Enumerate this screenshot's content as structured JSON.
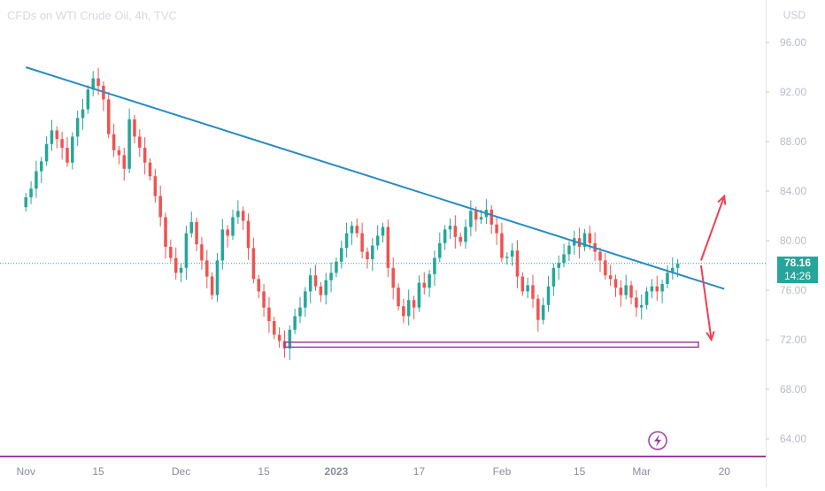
{
  "header": {
    "title": "CFDs on WTI Crude Oil, 4h, TVC",
    "currency": "USD"
  },
  "price_badge": {
    "last_price": "78.16",
    "countdown": "14:26"
  },
  "colors": {
    "up": "#26a69a",
    "down": "#ef5350",
    "trendline": "#2a8bc4",
    "support": "#9c3f9c",
    "arrows": "#ef4050",
    "last_price_line": "#26a69a"
  },
  "chart_data": {
    "type": "candlestick",
    "title": "CFDs on WTI Crude Oil, 4h, TVC",
    "ylabel": "USD",
    "ylim": [
      62,
      98
    ],
    "y_ticks": [
      "96.00",
      "92.00",
      "88.00",
      "84.00",
      "80.00",
      "76.00",
      "72.00",
      "68.00",
      "64.00"
    ],
    "x_ticks": [
      "Nov",
      "15",
      "Dec",
      "15",
      "2023",
      "17",
      "Feb",
      "15",
      "Mar",
      "20"
    ],
    "x_ticks_bold": [
      "2023"
    ],
    "x_index": [
      0,
      14,
      30,
      46,
      60,
      76,
      92,
      107,
      119,
      135
    ],
    "x_range": [
      -5,
      143
    ],
    "closes": [
      83.5,
      84.2,
      85.6,
      86.4,
      87.8,
      88.9,
      88.2,
      87.5,
      86.3,
      88.4,
      89.9,
      90.6,
      92.2,
      93.1,
      92.5,
      91.4,
      88.6,
      87.3,
      86.9,
      85.8,
      89.8,
      88.4,
      87.5,
      86.3,
      85.2,
      83.6,
      81.9,
      79.5,
      78.6,
      77.4,
      77.8,
      80.6,
      81.5,
      79.7,
      78.4,
      77.1,
      75.6,
      78.4,
      80.9,
      80.4,
      81.9,
      82.4,
      81.6,
      79.4,
      76.9,
      75.9,
      74.6,
      73.5,
      72.4,
      71.9,
      71.3,
      72.8,
      73.9,
      74.6,
      75.9,
      77.2,
      76.3,
      75.6,
      76.8,
      77.4,
      78.3,
      79.4,
      80.6,
      81.2,
      80.6,
      79.1,
      78.5,
      79.6,
      80.4,
      81.1,
      77.8,
      76.2,
      74.7,
      73.9,
      75.2,
      74.6,
      76.6,
      76.2,
      77.3,
      78.6,
      79.8,
      80.9,
      81.2,
      80.3,
      79.9,
      81.1,
      82.4,
      81.7,
      81.9,
      82.5,
      81.3,
      80.6,
      78.6,
      78.7,
      79.2,
      77.1,
      75.9,
      76.4,
      75.3,
      73.6,
      74.8,
      76.3,
      77.8,
      78.2,
      78.9,
      79.6,
      80.2,
      79.5,
      80.6,
      79.8,
      79.1,
      78.4,
      77.2,
      76.9,
      76.2,
      75.6,
      76.4,
      75.4,
      74.6,
      74.8,
      75.9,
      76.3,
      75.9,
      76.5,
      77.4,
      77.8,
      78.16
    ],
    "trendline": {
      "from": [
        0,
        94.0
      ],
      "to": [
        135,
        76.1
      ]
    },
    "support_band": {
      "y": [
        71.4,
        71.8
      ],
      "x": [
        50,
        130
      ]
    },
    "annotations": [
      {
        "type": "arrow",
        "direction": "up",
        "from": [
          130.5,
          78.4
        ],
        "to": [
          135,
          83.6
        ]
      },
      {
        "type": "arrow",
        "direction": "down",
        "from": [
          130.5,
          78.0
        ],
        "to": [
          132.5,
          72.0
        ]
      }
    ],
    "last_price": 78.16,
    "grid": false,
    "legend": "none"
  }
}
